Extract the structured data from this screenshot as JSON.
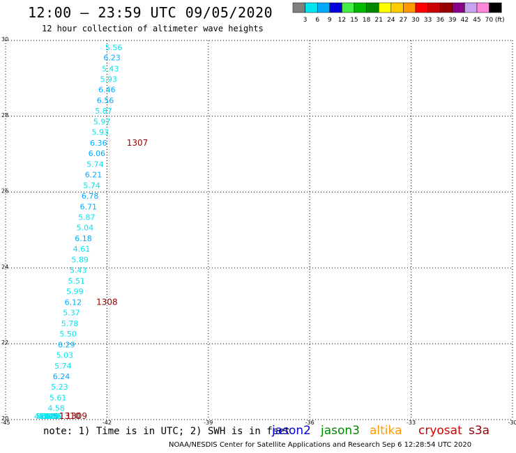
{
  "header": {
    "title": "12:00 – 23:59 UTC 09/05/2020",
    "subtitle": "12 hour collection of altimeter wave heights"
  },
  "colorbar": {
    "labels": [
      "3",
      "6",
      "9",
      "12",
      "15",
      "18",
      "21",
      "24",
      "27",
      "30",
      "33",
      "36",
      "39",
      "42",
      "45",
      "70 (ft)"
    ],
    "colors": [
      "#7f7f7f",
      "#00e5ee",
      "#00aaff",
      "#0000dd",
      "#44ee44",
      "#00bb00",
      "#008800",
      "#ffff00",
      "#ffcc00",
      "#ff9900",
      "#ff0000",
      "#cc0000",
      "#990000",
      "#880088",
      "#c8a2f0",
      "#ff88dd",
      "#000000"
    ]
  },
  "footer": {
    "note": "note: 1) Time is in UTC; 2) SWH is in feet",
    "credit": "NOAA/NESDIS Center for Satellite Applications and Research   Sep  6 12:28:54 UTC 2020"
  },
  "satellites": [
    {
      "name": "jason2",
      "color": "#0000dd"
    },
    {
      "name": "jason3",
      "color": "#008800"
    },
    {
      "name": "altika",
      "color": "#ff9900"
    },
    {
      "name": "cryosat",
      "color": "#cc0000"
    },
    {
      "name": "s3a",
      "color": "#990000"
    }
  ],
  "chart_data": {
    "type": "scatter",
    "title": "12:00 – 23:59 UTC 09/05/2020",
    "subtitle": "12 hour collection of altimeter wave heights",
    "xlim": [
      -45,
      -30
    ],
    "ylim": [
      20,
      30
    ],
    "x_ticks": [
      "-45",
      "-42",
      "-39",
      "-36",
      "-33",
      "-30"
    ],
    "y_ticks": [
      "20",
      "22",
      "24",
      "26",
      "28",
      "30"
    ],
    "grid": true,
    "wave_heights": [
      {
        "x": -41.8,
        "y": 29.82,
        "label": "5.56",
        "color": "#00e5ee"
      },
      {
        "x": -41.85,
        "y": 29.55,
        "label": "6.23",
        "color": "#00aaff"
      },
      {
        "x": -41.9,
        "y": 29.26,
        "label": "5.43",
        "color": "#00e5ee"
      },
      {
        "x": -41.95,
        "y": 28.98,
        "label": "5.93",
        "color": "#00e5ee"
      },
      {
        "x": -42.0,
        "y": 28.7,
        "label": "6.46",
        "color": "#00aaff"
      },
      {
        "x": -42.05,
        "y": 28.42,
        "label": "6.56",
        "color": "#00aaff"
      },
      {
        "x": -42.1,
        "y": 28.14,
        "label": "5.87",
        "color": "#00e5ee"
      },
      {
        "x": -42.15,
        "y": 27.86,
        "label": "5.97",
        "color": "#00e5ee"
      },
      {
        "x": -42.2,
        "y": 27.58,
        "label": "5.93",
        "color": "#00e5ee"
      },
      {
        "x": -42.25,
        "y": 27.3,
        "label": "6.36",
        "color": "#00aaff"
      },
      {
        "x": -42.3,
        "y": 27.02,
        "label": "6.06",
        "color": "#00aaff"
      },
      {
        "x": -42.35,
        "y": 26.74,
        "label": "5.74",
        "color": "#00e5ee"
      },
      {
        "x": -42.4,
        "y": 26.46,
        "label": "6.21",
        "color": "#00aaff"
      },
      {
        "x": -42.45,
        "y": 26.18,
        "label": "5.74",
        "color": "#00e5ee"
      },
      {
        "x": -42.5,
        "y": 25.9,
        "label": "6.78",
        "color": "#00aaff"
      },
      {
        "x": -42.55,
        "y": 25.62,
        "label": "6.71",
        "color": "#00aaff"
      },
      {
        "x": -42.6,
        "y": 25.34,
        "label": "5.87",
        "color": "#00e5ee"
      },
      {
        "x": -42.65,
        "y": 25.06,
        "label": "5.04",
        "color": "#00e5ee"
      },
      {
        "x": -42.7,
        "y": 24.78,
        "label": "6.18",
        "color": "#00aaff"
      },
      {
        "x": -42.75,
        "y": 24.5,
        "label": "4.61",
        "color": "#00e5ee"
      },
      {
        "x": -42.8,
        "y": 24.22,
        "label": "5.89",
        "color": "#00e5ee"
      },
      {
        "x": -42.85,
        "y": 23.94,
        "label": "5.43",
        "color": "#00e5ee"
      },
      {
        "x": -42.9,
        "y": 23.66,
        "label": "5.51",
        "color": "#00e5ee"
      },
      {
        "x": -42.95,
        "y": 23.38,
        "label": "5.99",
        "color": "#00e5ee"
      },
      {
        "x": -43.0,
        "y": 23.1,
        "label": "6.12",
        "color": "#00aaff"
      },
      {
        "x": -43.05,
        "y": 22.82,
        "label": "5.37",
        "color": "#00e5ee"
      },
      {
        "x": -43.1,
        "y": 22.54,
        "label": "5.78",
        "color": "#00e5ee"
      },
      {
        "x": -43.15,
        "y": 22.26,
        "label": "5.50",
        "color": "#00e5ee"
      },
      {
        "x": -43.2,
        "y": 21.98,
        "label": "6.29",
        "color": "#00aaff"
      },
      {
        "x": -43.25,
        "y": 21.7,
        "label": "5.03",
        "color": "#00e5ee"
      },
      {
        "x": -43.3,
        "y": 21.42,
        "label": "5.74",
        "color": "#00e5ee"
      },
      {
        "x": -43.35,
        "y": 21.14,
        "label": "6.24",
        "color": "#00aaff"
      },
      {
        "x": -43.4,
        "y": 20.86,
        "label": "5.23",
        "color": "#00e5ee"
      },
      {
        "x": -43.45,
        "y": 20.58,
        "label": "5.61",
        "color": "#00e5ee"
      },
      {
        "x": -43.5,
        "y": 20.3,
        "label": "4.58",
        "color": "#00e5ee"
      },
      {
        "x": -43.55,
        "y": 20.02,
        "label": "5.89",
        "color": "#00e5ee"
      },
      {
        "x": -43.6,
        "y": 19.74,
        "label": "5.16",
        "color": "#00e5ee"
      },
      {
        "x": -43.65,
        "y": 19.46,
        "label": "5.30",
        "color": "#00e5ee"
      },
      {
        "x": -43.7,
        "y": 19.18,
        "label": "6.45",
        "color": "#00aaff"
      },
      {
        "x": -43.75,
        "y": 18.9,
        "label": "5.83",
        "color": "#00e5ee"
      },
      {
        "x": -43.8,
        "y": 18.75,
        "label": "4.81",
        "color": "#00e5ee"
      },
      {
        "x": -43.85,
        "y": 18.5,
        "label": "5.34",
        "color": "#00e5ee"
      },
      {
        "x": -43.9,
        "y": 18.22,
        "label": "4.32",
        "color": "#00e5ee"
      }
    ],
    "track_labels": [
      {
        "x": -41.1,
        "y": 27.3,
        "label": "1307",
        "color": "#990000"
      },
      {
        "x": -42.0,
        "y": 23.1,
        "label": "1308",
        "color": "#990000"
      },
      {
        "x": -42.9,
        "y": 18.9,
        "label": "1309",
        "color": "#990000"
      },
      {
        "x": -43.1,
        "y": 18.22,
        "label": "1310",
        "color": "#990000"
      }
    ]
  }
}
